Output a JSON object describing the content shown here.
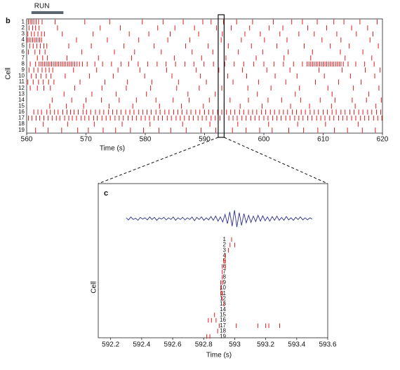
{
  "chart_data": [
    {
      "type": "raster",
      "label": "b",
      "annotation": "RUN",
      "run_period": [
        560.8,
        566.2
      ],
      "run_color": "#5b6570",
      "xlabel": "Time (s)",
      "ylabel": "Cell",
      "xlim": [
        560,
        620
      ],
      "xticks": [
        560,
        570,
        580,
        590,
        600,
        610,
        620
      ],
      "highlight": [
        592.3,
        593.3
      ],
      "color": "#e41a1c",
      "categories": [
        "1",
        "2",
        "3",
        "4",
        "5",
        "6",
        "7",
        "8",
        "9",
        "10",
        "11",
        "12",
        "13",
        "14",
        "15",
        "16",
        "17",
        "18",
        "19"
      ],
      "spikes": [
        [
          560.3,
          560.6,
          560.9,
          561.2,
          561.6,
          562.0,
          562.6,
          564.8,
          569.8,
          574.0,
          579.5,
          583.0,
          586.4,
          589.7,
          591.1,
          593.2,
          595.4,
          598.1,
          601.6,
          604.7,
          606.5,
          609.0,
          611.8,
          613.5,
          616.2,
          619.1
        ],
        [
          560.4,
          561.0,
          561.5,
          562.1,
          565.2,
          572.4,
          575.8,
          582.1,
          585.0,
          588.3,
          592.0,
          594.5,
          597.6,
          600.9,
          603.2,
          607.4,
          610.6,
          614.8,
          617.5
        ],
        [
          560.2,
          560.8,
          561.3,
          561.9,
          562.5,
          563.0,
          566.0,
          571.2,
          577.3,
          580.6,
          584.2,
          589.0,
          593.0,
          596.8,
          599.4,
          602.7,
          605.9,
          608.5,
          612.3,
          615.6,
          618.4
        ],
        [
          560.1,
          560.4,
          560.7,
          561.0,
          561.3,
          561.6,
          561.9,
          562.2,
          562.5,
          568.4,
          573.6,
          578.9,
          583.8,
          587.5,
          592.8,
          596.2,
          600.1,
          603.9,
          609.8,
          613.0,
          617.9
        ],
        [
          560.5,
          561.1,
          561.7,
          562.3,
          562.9,
          563.4,
          567.1,
          570.9,
          576.4,
          581.5,
          586.8,
          590.6,
          594.0,
          597.9,
          602.2,
          606.8,
          611.2,
          614.4,
          619.3
        ],
        [
          560.3,
          561.4,
          562.2,
          563.1,
          569.3,
          574.8,
          578.2,
          582.7,
          587.9,
          591.4,
          595.7,
          599.8,
          604.1,
          608.2,
          612.9,
          616.7
        ],
        [
          561.8,
          562.7,
          563.5,
          566.8,
          572.1,
          577.7,
          584.9,
          589.5,
          593.6,
          598.7,
          603.4,
          607.9,
          613.7,
          618.2
        ],
        [
          560.6,
          561.5,
          562.1,
          562.4,
          562.7,
          563.0,
          563.3,
          563.6,
          563.9,
          564.2,
          564.5,
          564.8,
          565.1,
          565.4,
          565.7,
          566.0,
          566.3,
          566.6,
          566.9,
          567.2,
          567.5,
          567.8,
          568.1,
          568.5,
          568.9,
          569.4,
          570.2,
          571.5,
          572.8,
          574.3,
          575.9,
          577.2,
          578.8,
          580.4,
          582.0,
          583.5,
          585.1,
          586.7,
          588.2,
          589.9,
          591.5,
          593.4,
          595.0,
          596.6,
          598.3,
          600.0,
          601.7,
          603.3,
          605.0,
          606.5,
          607.3,
          607.6,
          607.9,
          608.2,
          608.5,
          608.8,
          609.1,
          609.4,
          609.7,
          610.0,
          610.3,
          610.6,
          610.9,
          611.2,
          611.5,
          611.8,
          612.1,
          612.4,
          612.7,
          613.0,
          613.4,
          614.2,
          615.5,
          617.0,
          618.6
        ],
        [
          560.4,
          561.2,
          561.9,
          562.6,
          563.2,
          563.8,
          564.4,
          567.9,
          571.8,
          575.4,
          579.1,
          583.6,
          588.6,
          592.4,
          596.4,
          600.5,
          604.4,
          609.3,
          613.2,
          617.1,
          619.6
        ],
        [
          560.8,
          561.6,
          562.4,
          563.3,
          564.1,
          566.5,
          570.6,
          574.6,
          579.9,
          584.5,
          589.3,
          593.9,
          597.1,
          601.9,
          605.6,
          610.2,
          614.6,
          618.7
        ],
        [
          560.2,
          561.1,
          562.0,
          562.8,
          563.7,
          564.6,
          569.0,
          573.2,
          577.0,
          581.1,
          585.6,
          590.3,
          594.8,
          599.1,
          603.7,
          608.7,
          612.6,
          616.4
        ],
        [
          560.6,
          561.8,
          562.9,
          564.0,
          568.1,
          572.7,
          576.8,
          580.9,
          585.3,
          589.1,
          592.9,
          597.3,
          601.2,
          606.0,
          610.8,
          615.1,
          619.4
        ],
        [
          566.3,
          571.0,
          575.1,
          580.2,
          587.2,
          591.8,
          598.9,
          605.3,
          611.5,
          617.7
        ],
        [
          564.3,
          567.6,
          570.0,
          572.6,
          575.6,
          578.5,
          581.8,
          584.7,
          587.4,
          590.8,
          594.3,
          597.4,
          600.7,
          603.0,
          606.2,
          609.5,
          612.0,
          614.9,
          617.3,
          619.8
        ],
        [
          563.9,
          566.7,
          569.6,
          573.9,
          577.9,
          582.4,
          586.1,
          589.8,
          593.3,
          596.0,
          599.7,
          604.5,
          607.7,
          611.4,
          615.4,
          618.9
        ],
        [
          561.2,
          561.9,
          562.5,
          563.4,
          564.0,
          564.7,
          565.3,
          566.1,
          566.8,
          567.4,
          568.0,
          568.7,
          569.5,
          570.1,
          570.8,
          571.6,
          572.3,
          573.0,
          573.8,
          574.5,
          575.2,
          575.9,
          576.7,
          577.4,
          578.1,
          578.9,
          579.6,
          580.3,
          581.0,
          581.8,
          582.5,
          583.3,
          584.0,
          584.8,
          585.5,
          586.2,
          587.0,
          587.7,
          588.5,
          589.2,
          590.0,
          590.7,
          591.4,
          592.2,
          592.9,
          593.7,
          594.4,
          595.1,
          595.9,
          596.6,
          597.4,
          598.1,
          598.8,
          599.6,
          600.3,
          601.1,
          601.8,
          602.6,
          603.3,
          604.0,
          604.8,
          605.5,
          606.3,
          607.0,
          607.8,
          608.5,
          609.2,
          610.0,
          610.7,
          611.5,
          612.2,
          613.0,
          613.7,
          614.5,
          615.2,
          616.0,
          616.7,
          617.5,
          618.2,
          619.0,
          619.7
        ],
        [
          560.3,
          560.9,
          561.6,
          562.2,
          562.9,
          563.6,
          564.3,
          565.0,
          565.6,
          566.4,
          567.1,
          567.7,
          568.4,
          569.2,
          569.8,
          570.5,
          571.3,
          571.9,
          572.7,
          573.4,
          574.1,
          574.9,
          575.6,
          576.3,
          577.1,
          577.8,
          578.5,
          579.3,
          580.0,
          580.7,
          581.5,
          582.2,
          582.9,
          583.7,
          584.4,
          585.2,
          585.9,
          586.6,
          587.4,
          588.1,
          588.9,
          589.6,
          590.3,
          591.1,
          591.8,
          592.6,
          593.3,
          594.1,
          594.8,
          595.5,
          596.3,
          597.0,
          597.8,
          598.5,
          599.2,
          600.0,
          600.7,
          601.5,
          602.2,
          602.9,
          603.7,
          604.4,
          605.2,
          605.9,
          606.6,
          607.4,
          608.1,
          608.9,
          609.6,
          610.3,
          611.1,
          611.8,
          612.6,
          613.3,
          614.0,
          614.8,
          615.5,
          616.3,
          617.0,
          617.7,
          618.5,
          619.2,
          619.9
        ],
        [
          562.8,
          566.9,
          571.4,
          576.1,
          580.8,
          586.3,
          590.9,
          595.6,
          600.8,
          605.7,
          610.4,
          615.9
        ],
        [
          561.5,
          563.6,
          565.9,
          568.6,
          570.4,
          572.9,
          575.0,
          577.5,
          579.7,
          582.3,
          584.3,
          586.9,
          589.4,
          591.9,
          594.7,
          597.0,
          599.3,
          601.4,
          604.2,
          606.7,
          609.1,
          611.9,
          614.1,
          616.6,
          618.8
        ]
      ]
    },
    {
      "type": "raster",
      "label": "c",
      "xlabel": "Time (s)",
      "ylabel": "Cell",
      "xlim": [
        592.12,
        593.6
      ],
      "xticks": [
        592.2,
        592.4,
        592.6,
        592.8,
        593,
        593.2,
        593.4,
        593.6
      ],
      "color": "#e41a1c",
      "trace_color": "#2b2f8f",
      "trace_xlim": [
        592.3,
        593.5
      ],
      "trace": [
        0.1,
        -0.15,
        0.2,
        -0.1,
        0.05,
        -0.2,
        0.15,
        -0.05,
        0.1,
        -0.15,
        0.2,
        -0.1,
        0.15,
        -0.2,
        0.1,
        -0.05,
        0.15,
        -0.15,
        0.1,
        -0.1,
        0.2,
        -0.2,
        0.1,
        -0.1,
        0.15,
        -0.15,
        0.1,
        -0.1,
        0.2,
        -0.25,
        0.15,
        -0.1,
        0.2,
        -0.2,
        0.1,
        -0.15,
        0.25,
        -0.2,
        0.3,
        -0.3,
        0.2,
        -0.4,
        0.5,
        -0.6,
        0.8,
        -0.9,
        1.0,
        -1.0,
        0.7,
        -0.8,
        0.6,
        -0.5,
        0.4,
        -0.45,
        0.3,
        -0.35,
        0.4,
        -0.3,
        0.35,
        -0.25,
        0.2,
        -0.3,
        0.25,
        -0.2,
        0.3,
        -0.2,
        0.15,
        -0.2,
        0.25,
        -0.15,
        0.1,
        -0.2,
        0.15,
        -0.1,
        0.2,
        -0.15,
        0.1,
        -0.15,
        0.1,
        -0.05
      ],
      "categories": [
        "1",
        "2",
        "3",
        "4",
        "5",
        "6",
        "7",
        "8",
        "9",
        "10",
        "11",
        "12",
        "13",
        "14",
        "15",
        "16",
        "17",
        "18",
        "19"
      ],
      "spikes": [
        [
          592.98
        ],
        [
          592.97,
          593.0
        ],
        [
          592.96
        ],
        [
          592.94
        ],
        [
          592.93,
          592.94
        ],
        [
          592.92,
          592.94
        ],
        [
          592.92
        ],
        [
          592.92
        ],
        [
          592.91,
          592.92
        ],
        [
          592.91
        ],
        [
          592.91,
          592.92
        ],
        [
          592.92
        ],
        [
          592.93
        ],
        [],
        [
          592.87
        ],
        [
          592.83,
          592.85,
          592.88
        ],
        [
          592.9,
          593.01,
          593.15,
          593.2,
          593.22,
          593.29
        ],
        [
          592.89
        ],
        [
          592.82,
          592.84
        ]
      ]
    }
  ]
}
